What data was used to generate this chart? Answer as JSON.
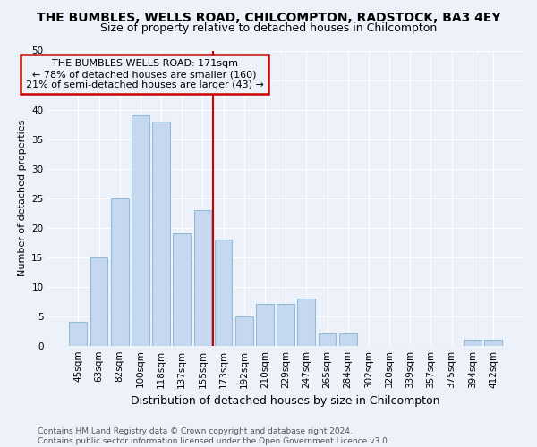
{
  "title": "THE BUMBLES, WELLS ROAD, CHILCOMPTON, RADSTOCK, BA3 4EY",
  "subtitle": "Size of property relative to detached houses in Chilcompton",
  "xlabel": "Distribution of detached houses by size in Chilcompton",
  "ylabel": "Number of detached properties",
  "footer_line1": "Contains HM Land Registry data © Crown copyright and database right 2024.",
  "footer_line2": "Contains public sector information licensed under the Open Government Licence v3.0.",
  "annotation_title": "THE BUMBLES WELLS ROAD: 171sqm",
  "annotation_line2": "← 78% of detached houses are smaller (160)",
  "annotation_line3": "21% of semi-detached houses are larger (43) →",
  "categories": [
    "45sqm",
    "63sqm",
    "82sqm",
    "100sqm",
    "118sqm",
    "137sqm",
    "155sqm",
    "173sqm",
    "192sqm",
    "210sqm",
    "229sqm",
    "247sqm",
    "265sqm",
    "284sqm",
    "302sqm",
    "320sqm",
    "339sqm",
    "357sqm",
    "375sqm",
    "394sqm",
    "412sqm"
  ],
  "values": [
    4,
    15,
    25,
    39,
    38,
    19,
    23,
    18,
    5,
    7,
    7,
    8,
    2,
    2,
    0,
    0,
    0,
    0,
    0,
    1,
    1
  ],
  "bar_color": "#c5d8f0",
  "bar_edge_color": "#93bcd9",
  "vline_color": "#cc0000",
  "vline_x_index": 7,
  "annotation_box_color": "#cc0000",
  "background_color": "#edf2fa",
  "grid_color": "#ffffff",
  "ylim": [
    0,
    50
  ],
  "yticks": [
    0,
    5,
    10,
    15,
    20,
    25,
    30,
    35,
    40,
    45,
    50
  ],
  "title_fontsize": 10,
  "subtitle_fontsize": 9,
  "ylabel_fontsize": 8,
  "xlabel_fontsize": 9,
  "tick_fontsize": 7.5,
  "footer_fontsize": 6.5,
  "annotation_fontsize": 8
}
